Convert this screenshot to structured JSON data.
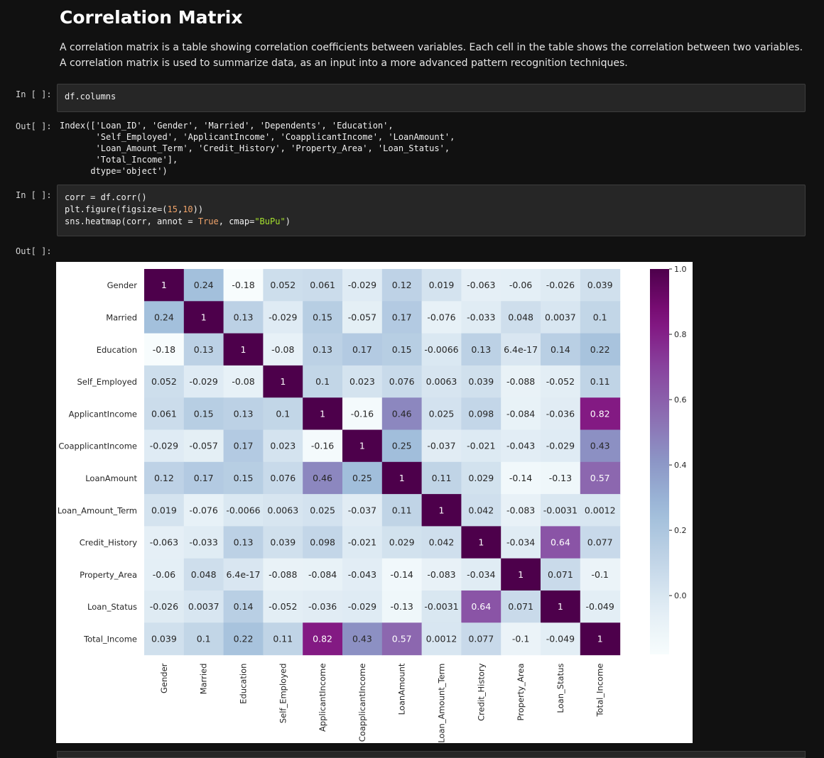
{
  "markdown": {
    "title": "Correlation Matrix",
    "paragraph": "A correlation matrix is a table showing correlation coefficients between variables. Each cell in the table shows the correlation between two variables. A correlation matrix is used to summarize data, as an input into a more advanced pattern recognition techniques."
  },
  "cells": {
    "in1_prompt": "In [ ]:",
    "in1_code": "df.columns",
    "out1_prompt": "Out[ ]:",
    "out1_text": "Index(['Loan_ID', 'Gender', 'Married', 'Dependents', 'Education',\n       'Self_Employed', 'ApplicantIncome', 'CoapplicantIncome', 'LoanAmount',\n       'Loan_Amount_Term', 'Credit_History', 'Property_Area', 'Loan_Status',\n       'Total_Income'],\n      dtype='object')",
    "in2_prompt": "In [ ]:",
    "in2_code": {
      "line1": "corr = df.corr()",
      "line2_a": "plt.figure(figsize=(",
      "line2_n1": "15",
      "line2_b": ",",
      "line2_n2": "10",
      "line2_c": "))",
      "line3_a": "sns.heatmap(corr, annot = ",
      "line3_kw": "True",
      "line3_b": ", cmap=",
      "line3_str": "\"BuPu\"",
      "line3_c": ")"
    },
    "out2_prompt": "Out[ ]:"
  },
  "chart_data": {
    "type": "heatmap",
    "cmap": "BuPu",
    "labels": [
      "Gender",
      "Married",
      "Education",
      "Self_Employed",
      "ApplicantIncome",
      "CoapplicantIncome",
      "LoanAmount",
      "Loan_Amount_Term",
      "Credit_History",
      "Property_Area",
      "Loan_Status",
      "Total_Income"
    ],
    "matrix": [
      [
        1,
        0.24,
        -0.18,
        0.052,
        0.061,
        -0.029,
        0.12,
        0.019,
        -0.063,
        -0.06,
        -0.026,
        0.039
      ],
      [
        0.24,
        1,
        0.13,
        -0.029,
        0.15,
        -0.057,
        0.17,
        -0.076,
        -0.033,
        0.048,
        0.0037,
        0.1
      ],
      [
        -0.18,
        0.13,
        1,
        -0.08,
        0.13,
        0.17,
        0.15,
        -0.0066,
        0.13,
        6.4e-17,
        0.14,
        0.22
      ],
      [
        0.052,
        -0.029,
        -0.08,
        1,
        0.1,
        0.023,
        0.076,
        0.0063,
        0.039,
        -0.088,
        -0.052,
        0.11
      ],
      [
        0.061,
        0.15,
        0.13,
        0.1,
        1,
        -0.16,
        0.46,
        0.025,
        0.098,
        -0.084,
        -0.036,
        0.82
      ],
      [
        -0.029,
        -0.057,
        0.17,
        0.023,
        -0.16,
        1,
        0.25,
        -0.037,
        -0.021,
        -0.043,
        -0.029,
        0.43
      ],
      [
        0.12,
        0.17,
        0.15,
        0.076,
        0.46,
        0.25,
        1,
        0.11,
        0.029,
        -0.14,
        -0.13,
        0.57
      ],
      [
        0.019,
        -0.076,
        -0.0066,
        0.0063,
        0.025,
        -0.037,
        0.11,
        1,
        0.042,
        -0.083,
        -0.0031,
        0.0012
      ],
      [
        -0.063,
        -0.033,
        0.13,
        0.039,
        0.098,
        -0.021,
        0.029,
        0.042,
        1,
        -0.034,
        0.64,
        0.077
      ],
      [
        -0.06,
        0.048,
        6.4e-17,
        -0.088,
        -0.084,
        -0.043,
        -0.14,
        -0.083,
        -0.034,
        1,
        0.071,
        -0.1
      ],
      [
        -0.026,
        0.0037,
        0.14,
        -0.052,
        -0.036,
        -0.029,
        -0.13,
        -0.0031,
        0.64,
        0.071,
        1,
        -0.049
      ],
      [
        0.039,
        0.1,
        0.22,
        0.11,
        0.82,
        0.43,
        0.57,
        0.0012,
        0.077,
        -0.1,
        -0.049,
        1
      ]
    ],
    "annotations": [
      [
        "1",
        "0.24",
        "-0.18",
        "0.052",
        "0.061",
        "-0.029",
        "0.12",
        "0.019",
        "-0.063",
        "-0.06",
        "-0.026",
        "0.039"
      ],
      [
        "0.24",
        "1",
        "0.13",
        "-0.029",
        "0.15",
        "-0.057",
        "0.17",
        "-0.076",
        "-0.033",
        "0.048",
        "0.0037",
        "0.1"
      ],
      [
        "-0.18",
        "0.13",
        "1",
        "-0.08",
        "0.13",
        "0.17",
        "0.15",
        "-0.0066",
        "0.13",
        "6.4e-17",
        "0.14",
        "0.22"
      ],
      [
        "0.052",
        "-0.029",
        "-0.08",
        "1",
        "0.1",
        "0.023",
        "0.076",
        "0.0063",
        "0.039",
        "-0.088",
        "-0.052",
        "0.11"
      ],
      [
        "0.061",
        "0.15",
        "0.13",
        "0.1",
        "1",
        "-0.16",
        "0.46",
        "0.025",
        "0.098",
        "-0.084",
        "-0.036",
        "0.82"
      ],
      [
        "-0.029",
        "-0.057",
        "0.17",
        "0.023",
        "-0.16",
        "1",
        "0.25",
        "-0.037",
        "-0.021",
        "-0.043",
        "-0.029",
        "0.43"
      ],
      [
        "0.12",
        "0.17",
        "0.15",
        "0.076",
        "0.46",
        "0.25",
        "1",
        "0.11",
        "0.029",
        "-0.14",
        "-0.13",
        "0.57"
      ],
      [
        "0.019",
        "-0.076",
        "-0.0066",
        "0.0063",
        "0.025",
        "-0.037",
        "0.11",
        "1",
        "0.042",
        "-0.083",
        "-0.0031",
        "0.0012"
      ],
      [
        "-0.063",
        "-0.033",
        "0.13",
        "0.039",
        "0.098",
        "-0.021",
        "0.029",
        "0.042",
        "1",
        "-0.034",
        "0.64",
        "0.077"
      ],
      [
        "-0.06",
        "0.048",
        "6.4e-17",
        "-0.088",
        "-0.084",
        "-0.043",
        "-0.14",
        "-0.083",
        "-0.034",
        "1",
        "0.071",
        "-0.1"
      ],
      [
        "-0.026",
        "0.0037",
        "0.14",
        "-0.052",
        "-0.036",
        "-0.029",
        "-0.13",
        "-0.0031",
        "0.64",
        "0.071",
        "1",
        "-0.049"
      ],
      [
        "0.039",
        "0.1",
        "0.22",
        "0.11",
        "0.82",
        "0.43",
        "0.57",
        "0.0012",
        "0.077",
        "-0.1",
        "-0.049",
        "1"
      ]
    ],
    "colorbar": {
      "vmin": -0.18,
      "vmax": 1.0,
      "ticks": [
        0.0,
        0.2,
        0.4,
        0.6,
        0.8,
        1.0
      ],
      "tick_labels": [
        "0.0",
        "0.2",
        "0.4",
        "0.6",
        "0.8",
        "1.0"
      ]
    }
  }
}
